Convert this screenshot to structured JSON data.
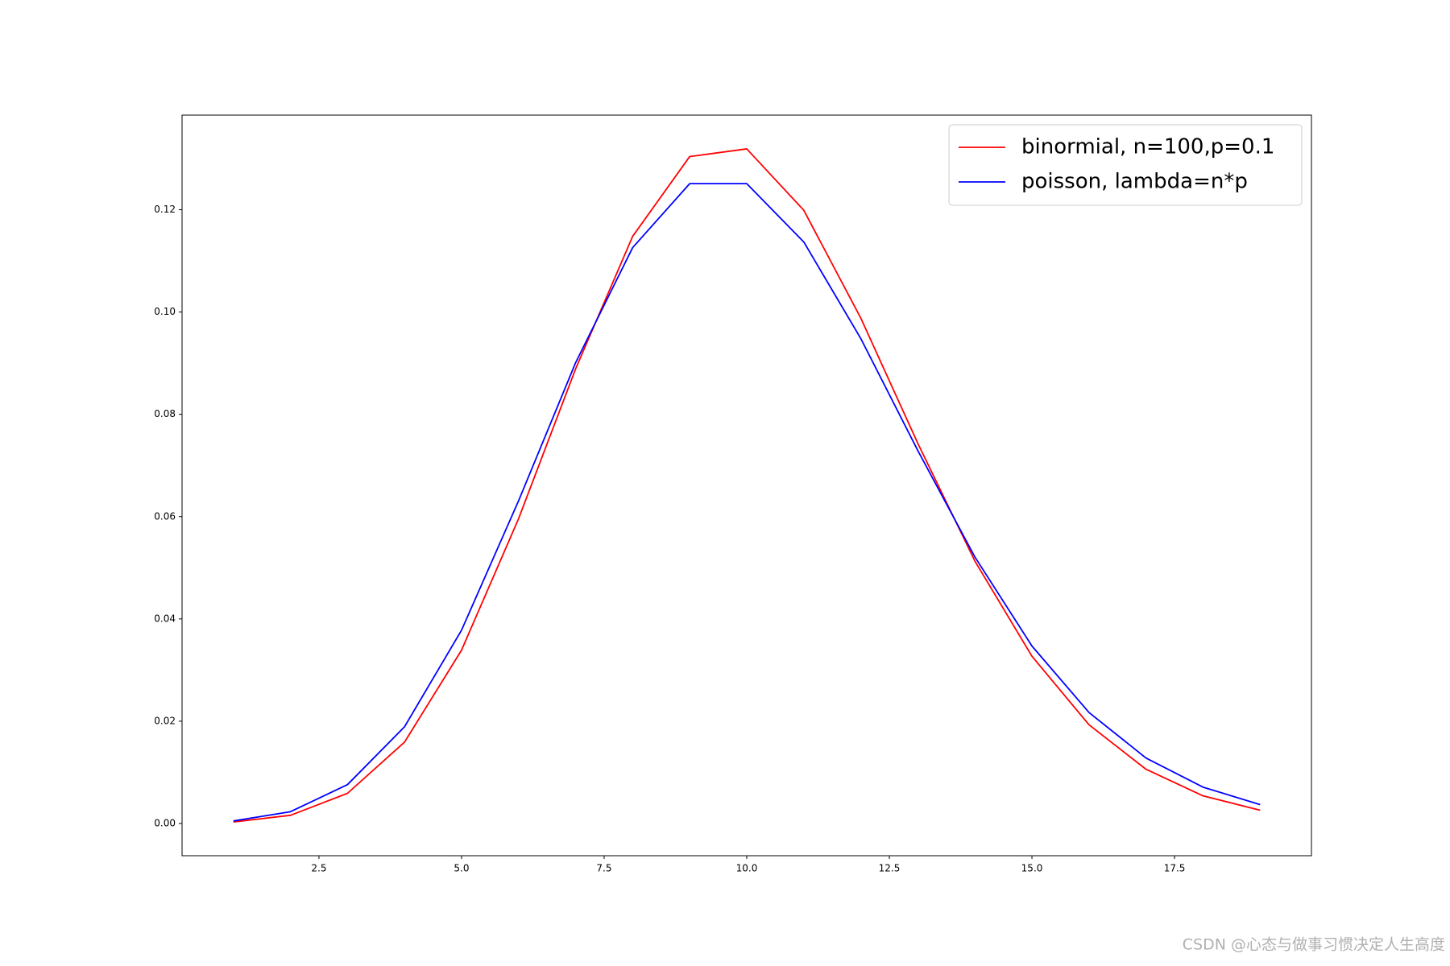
{
  "chart_data": {
    "type": "line",
    "x": [
      1,
      2,
      3,
      4,
      5,
      6,
      7,
      8,
      9,
      10,
      11,
      12,
      13,
      14,
      15,
      16,
      17,
      18,
      19
    ],
    "series": [
      {
        "name": "binormial, n=100,p=0.1",
        "color": "#ff0000",
        "values": [
          0.0003,
          0.0016,
          0.0059,
          0.0159,
          0.0339,
          0.0596,
          0.0889,
          0.1148,
          0.1304,
          0.1319,
          0.1199,
          0.0988,
          0.0743,
          0.0513,
          0.0327,
          0.0193,
          0.0106,
          0.0054,
          0.0026
        ]
      },
      {
        "name": "poisson, lambda=n*p",
        "color": "#0000ff",
        "values": [
          0.0005,
          0.0023,
          0.0076,
          0.0189,
          0.0378,
          0.0631,
          0.0901,
          0.1126,
          0.1251,
          0.1251,
          0.1137,
          0.0948,
          0.0729,
          0.0521,
          0.0347,
          0.0217,
          0.0128,
          0.0071,
          0.0037
        ]
      }
    ],
    "xlim": [
      0.1,
      19.9
    ],
    "ylim": [
      -0.0063,
      0.1385
    ],
    "xticks": [
      2.5,
      {
        "value": 5,
        "label": "5.0"
      },
      7.5,
      {
        "value": 10,
        "label": "10.0"
      },
      12.5,
      {
        "value": 15,
        "label": "15.0"
      },
      17.5
    ],
    "yticks": [
      {
        "value": 0,
        "label": "0.00"
      },
      {
        "value": 0.02,
        "label": "0.02"
      },
      {
        "value": 0.04,
        "label": "0.04"
      },
      {
        "value": 0.06,
        "label": "0.06"
      },
      {
        "value": 0.08,
        "label": "0.08"
      },
      {
        "value": 0.1,
        "label": "0.10"
      },
      {
        "value": 0.12,
        "label": "0.12"
      }
    ],
    "grid": false,
    "legend": "upper right",
    "watermark": "CSDN @心态与做事习惯决定人生高度"
  }
}
